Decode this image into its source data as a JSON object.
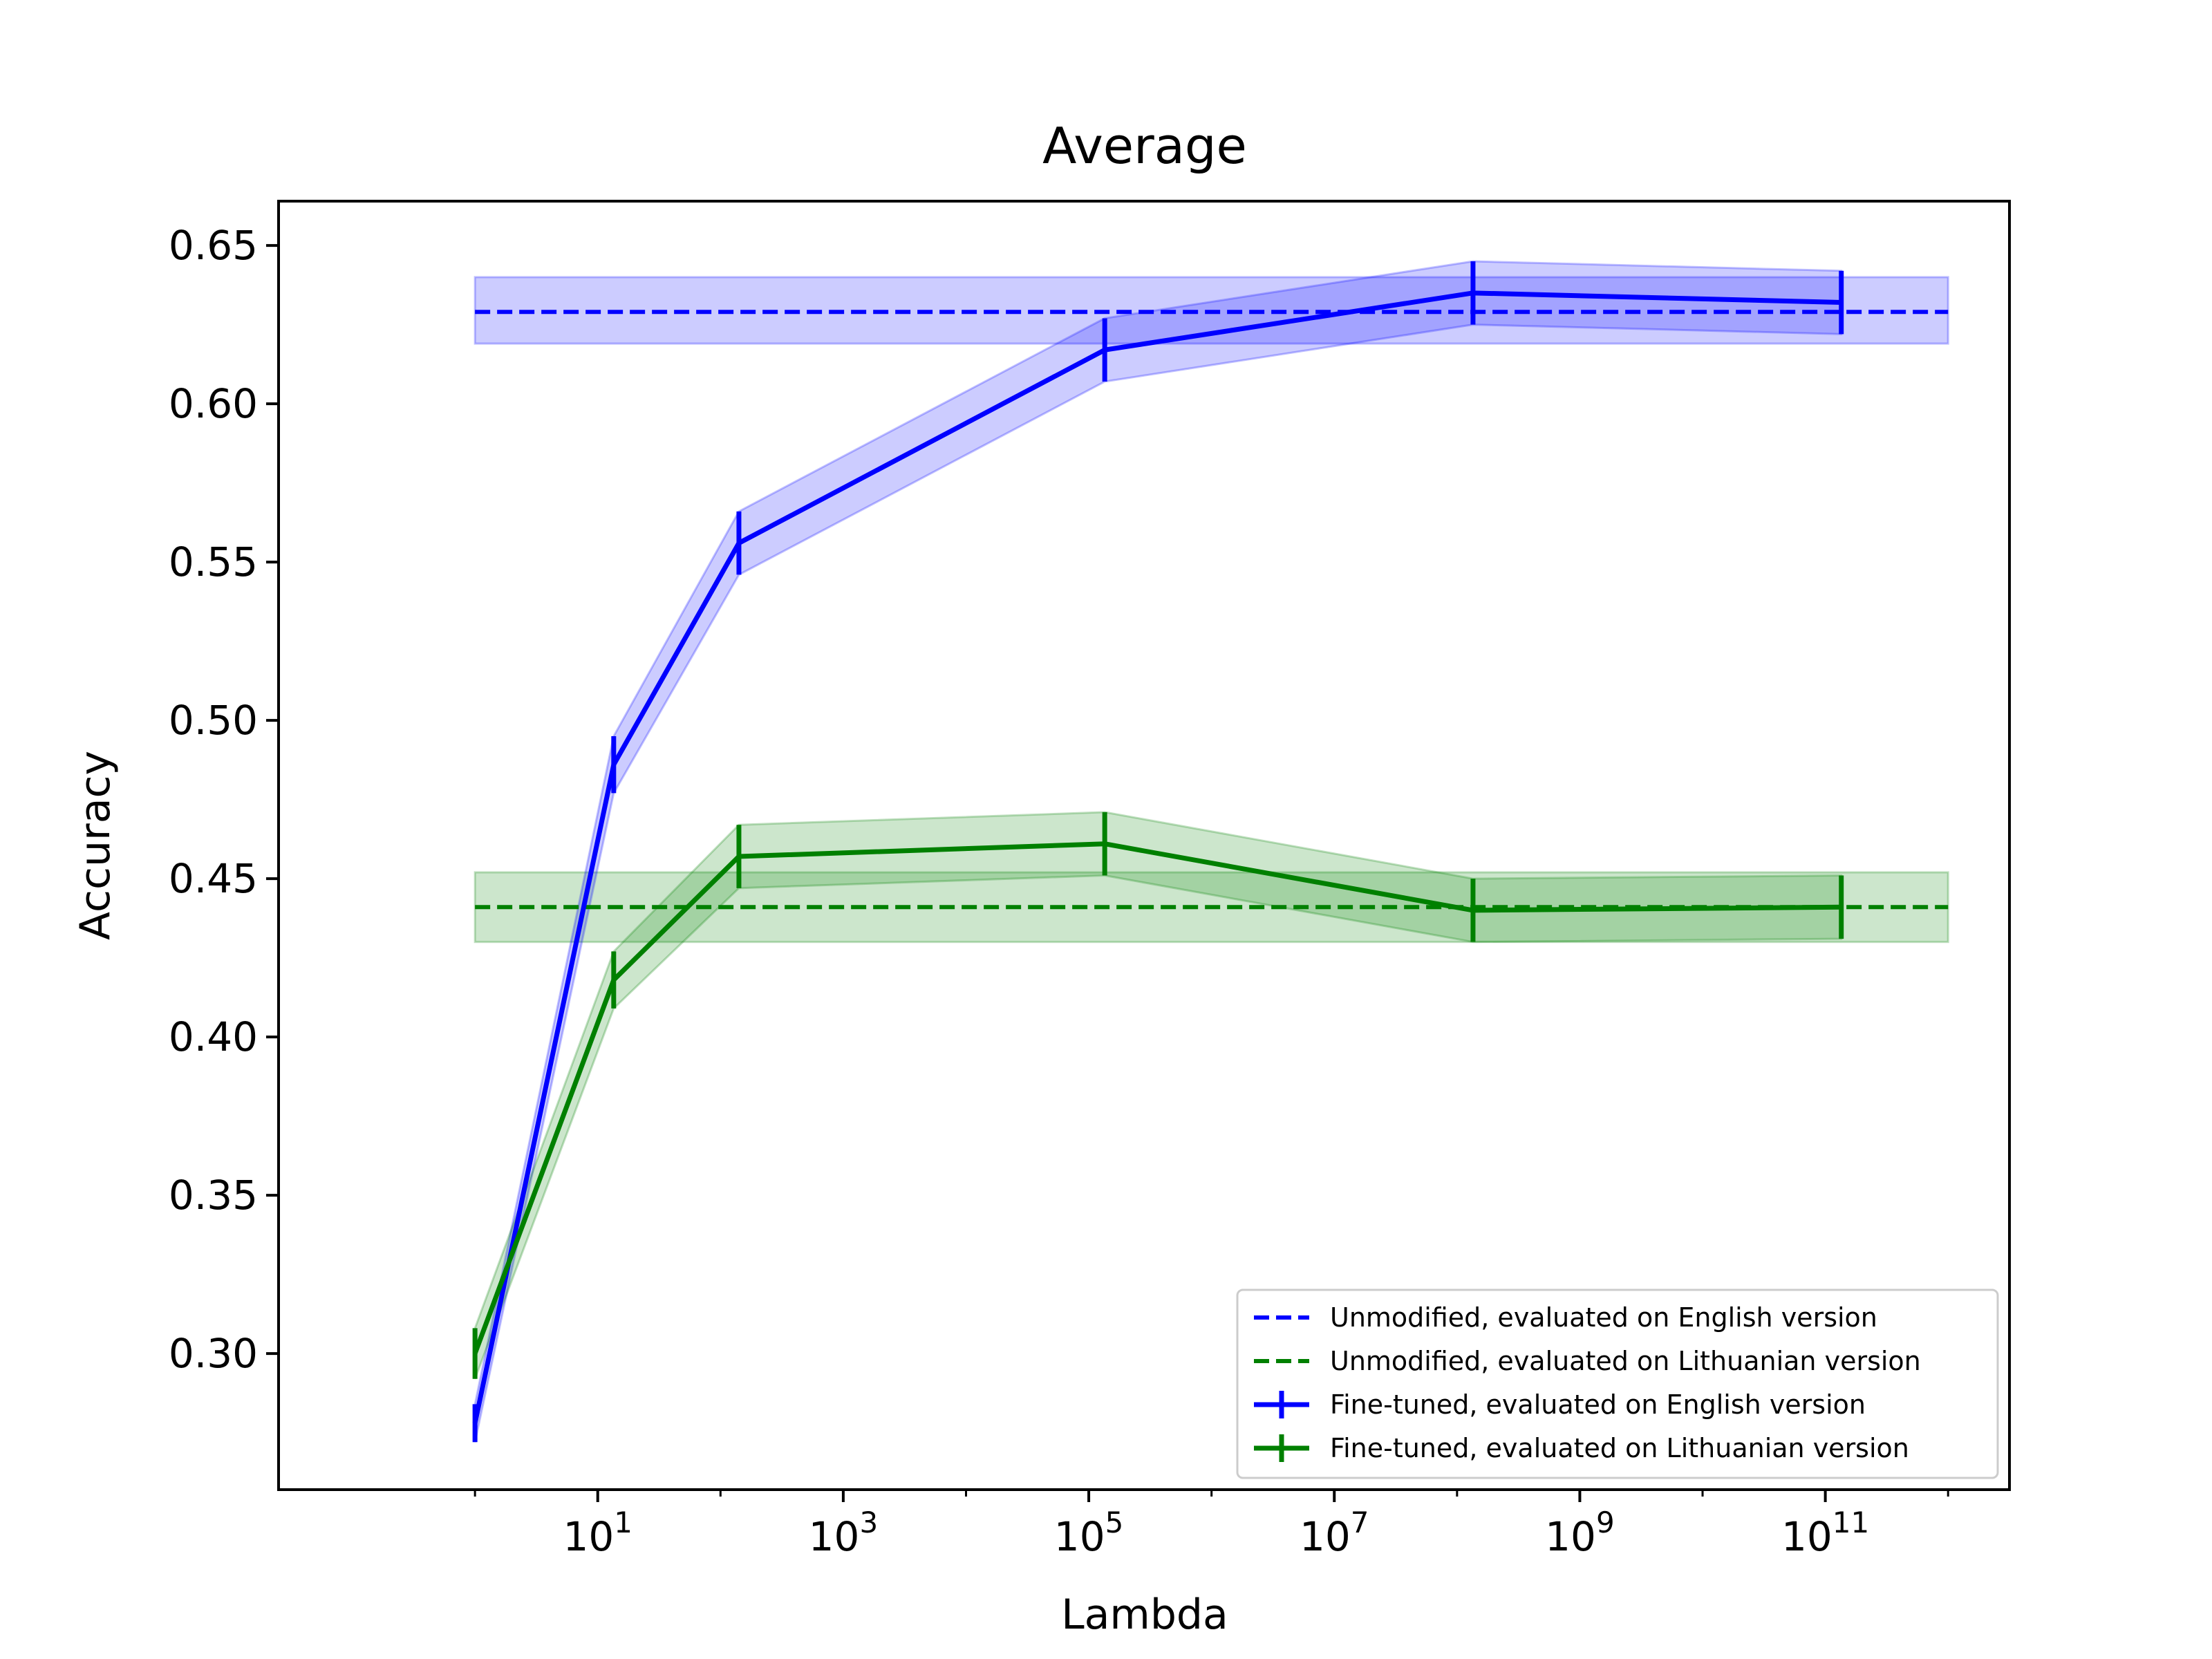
{
  "chart_data": {
    "type": "line",
    "title": "Average",
    "xlabel": "Lambda",
    "ylabel": "Accuracy",
    "xscale": "log",
    "xlim_log10": [
      -1.6,
      12.5
    ],
    "ylim": [
      0.257,
      0.664
    ],
    "xticks": [
      {
        "base": "10",
        "exp": "1",
        "log10": 1
      },
      {
        "base": "10",
        "exp": "3",
        "log10": 3
      },
      {
        "base": "10",
        "exp": "5",
        "log10": 5
      },
      {
        "base": "10",
        "exp": "7",
        "log10": 7
      },
      {
        "base": "10",
        "exp": "9",
        "log10": 9
      },
      {
        "base": "10",
        "exp": "11",
        "log10": 11
      }
    ],
    "yticks": [
      {
        "label": "0.30",
        "value": 0.3
      },
      {
        "label": "0.35",
        "value": 0.35
      },
      {
        "label": "0.40",
        "value": 0.4
      },
      {
        "label": "0.45",
        "value": 0.45
      },
      {
        "label": "0.50",
        "value": 0.5
      },
      {
        "label": "0.55",
        "value": 0.55
      },
      {
        "label": "0.60",
        "value": 0.6
      },
      {
        "label": "0.65",
        "value": 0.65
      }
    ],
    "legend_position": "lower-right",
    "baselines": [
      {
        "name": "Unmodified, evaluated on English version",
        "color": "#0000ff",
        "value": 0.629,
        "band": [
          0.619,
          0.64
        ],
        "x_log10_range": [
          0,
          12
        ]
      },
      {
        "name": "Unmodified, evaluated on Lithuanian version",
        "color": "#008000",
        "value": 0.441,
        "band": [
          0.43,
          0.452
        ],
        "x_log10_range": [
          0,
          12
        ]
      }
    ],
    "series": [
      {
        "name": "Fine-tuned, evaluated on English version",
        "color": "#0000ff",
        "x_log10": [
          0,
          1.13,
          2.15,
          5.13,
          8.13,
          11.13
        ],
        "values": [
          0.278,
          0.486,
          0.556,
          0.617,
          0.635,
          0.632
        ],
        "err": [
          0.006,
          0.009,
          0.01,
          0.01,
          0.01,
          0.01
        ]
      },
      {
        "name": "Fine-tuned, evaluated on Lithuanian version",
        "color": "#008000",
        "x_log10": [
          0,
          1.13,
          2.15,
          5.13,
          8.13,
          11.13
        ],
        "values": [
          0.3,
          0.418,
          0.457,
          0.461,
          0.44,
          0.441
        ],
        "err": [
          0.008,
          0.009,
          0.01,
          0.01,
          0.01,
          0.01
        ]
      }
    ]
  }
}
